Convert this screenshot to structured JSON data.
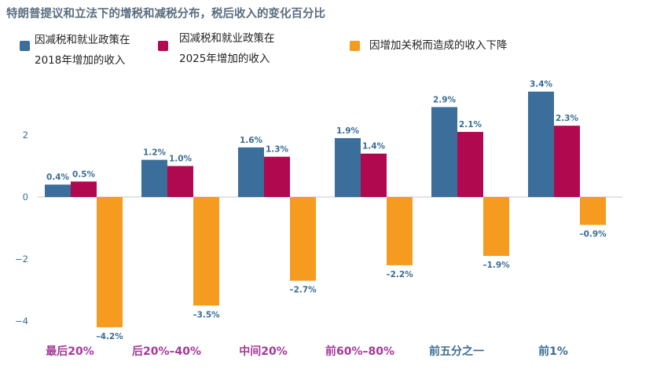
{
  "chart_data": {
    "type": "bar",
    "title": "特朗普提议和立法下的增税和减税分布，税后收入的变化百分比",
    "categories": [
      "最后20%",
      "后20%–40%",
      "中间20%",
      "前60%–80%",
      "前五分之一",
      "前1%"
    ],
    "category_colors": [
      "#a6389a",
      "#a6389a",
      "#a6389a",
      "#a6389a",
      "#3a6d95",
      "#3a6d95"
    ],
    "series": [
      {
        "name": "因减税和就业政策在2018年增加的收入",
        "name_lines": [
          "因减税和就业政策在",
          "2018年增加的收入"
        ],
        "color": "#3b6e9a",
        "values": [
          0.4,
          1.2,
          1.6,
          1.9,
          2.9,
          3.4
        ],
        "labels": [
          "0.4%",
          "1.2%",
          "1.6%",
          "1.9%",
          "2.9%",
          "3.4%"
        ]
      },
      {
        "name": "因减税和就业政策在2025年增加的收入",
        "name_lines": [
          "因减税和就业政策在",
          "2025年增加的收入"
        ],
        "color": "#b0094f",
        "values": [
          0.5,
          1.0,
          1.3,
          1.4,
          2.1,
          2.3
        ],
        "labels": [
          "0.5%",
          "1.0%",
          "1.3%",
          "1.4%",
          "2.1%",
          "2.3%"
        ]
      },
      {
        "name": "因增加关税而造成的收入下降",
        "name_lines": [
          "因增加关税而造成的收入下降"
        ],
        "color": "#f49b20",
        "values": [
          -4.2,
          -3.5,
          -2.7,
          -2.2,
          -1.9,
          -0.9
        ],
        "labels": [
          "–4.2%",
          "–3.5%",
          "–2.7%",
          "–2.2%",
          "–1.9%",
          "–0.9%"
        ]
      }
    ],
    "yticks": [
      2,
      0,
      -2,
      -4
    ],
    "ytick_labels": [
      "2",
      "0",
      "−2",
      "−4"
    ],
    "ylim": [
      -4.6,
      3.6
    ],
    "legend": "top",
    "grid": false
  }
}
